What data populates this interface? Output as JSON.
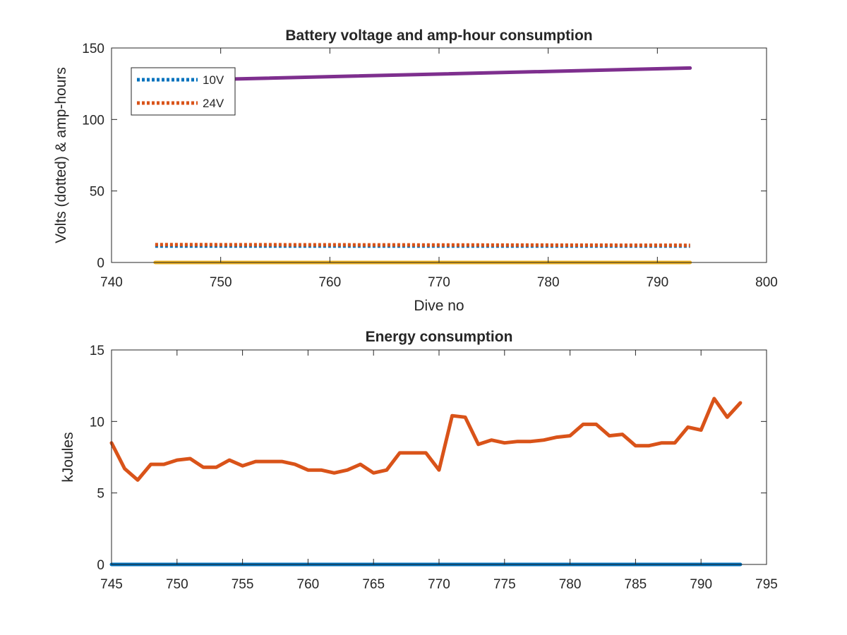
{
  "chart_data": [
    {
      "type": "line",
      "title": "Battery voltage and amp-hour consumption",
      "xlabel": "Dive no",
      "ylabel": "Volts (dotted) & amp-hours",
      "xlim": [
        740,
        800
      ],
      "ylim": [
        0,
        150
      ],
      "xticks": [
        "740",
        "750",
        "760",
        "770",
        "780",
        "790",
        "800"
      ],
      "yticks": [
        "0",
        "50",
        "100",
        "150"
      ],
      "grid": false,
      "legend_position": "top-left",
      "series": [
        {
          "name": "10V",
          "style": "dotted",
          "color": "#0072BD",
          "x": [
            744,
            793
          ],
          "y": [
            11.5,
            11.5
          ]
        },
        {
          "name": "24V",
          "style": "dotted",
          "color": "#D95319",
          "x": [
            744,
            793
          ],
          "y": [
            12.5,
            12
          ]
        },
        {
          "style": "solid",
          "color": "#7E2F8E",
          "x": [
            744,
            793
          ],
          "y": [
            127,
            136
          ]
        },
        {
          "style": "solid",
          "color": "#EDB120",
          "x": [
            744,
            793
          ],
          "y": [
            0,
            0
          ]
        }
      ]
    },
    {
      "type": "line",
      "title": "Energy consumption",
      "xlabel": "",
      "ylabel": "kJoules",
      "xlim": [
        745,
        795
      ],
      "ylim": [
        0,
        15
      ],
      "xticks": [
        "745",
        "750",
        "755",
        "760",
        "765",
        "770",
        "775",
        "780",
        "785",
        "790",
        "795"
      ],
      "yticks": [
        "0",
        "5",
        "10",
        "15"
      ],
      "grid": false,
      "series": [
        {
          "style": "solid",
          "color": "#D95319",
          "x": [
            745,
            746,
            747,
            748,
            749,
            750,
            751,
            752,
            753,
            754,
            755,
            756,
            757,
            758,
            759,
            760,
            761,
            762,
            763,
            764,
            765,
            766,
            767,
            768,
            769,
            770,
            771,
            772,
            773,
            774,
            775,
            776,
            777,
            778,
            779,
            780,
            781,
            782,
            783,
            784,
            785,
            786,
            787,
            788,
            789,
            790,
            791,
            792,
            793
          ],
          "y": [
            8.5,
            6.7,
            5.9,
            7.0,
            7.0,
            7.3,
            7.4,
            6.8,
            6.8,
            7.3,
            6.9,
            7.2,
            7.2,
            7.2,
            7.0,
            6.6,
            6.6,
            6.4,
            6.6,
            7.0,
            6.4,
            6.6,
            7.8,
            7.8,
            7.8,
            6.6,
            10.4,
            10.3,
            8.4,
            8.7,
            8.5,
            8.6,
            8.6,
            8.7,
            8.9,
            9.0,
            9.8,
            9.8,
            9.0,
            9.1,
            8.3,
            8.3,
            8.5,
            8.5,
            9.6,
            9.4,
            11.6,
            10.3,
            11.3
          ]
        },
        {
          "style": "solid",
          "color": "#0072BD",
          "x": [
            745,
            793
          ],
          "y": [
            0,
            0
          ]
        }
      ]
    }
  ]
}
